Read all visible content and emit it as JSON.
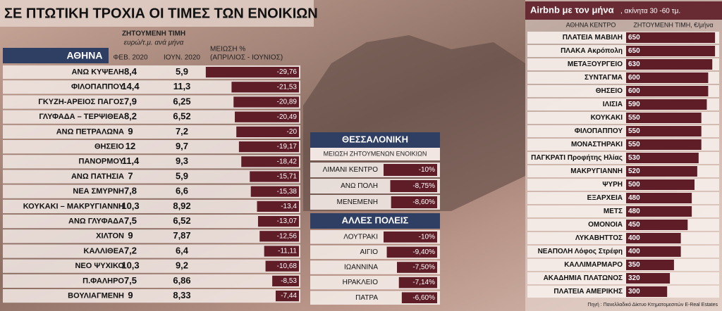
{
  "header": {
    "title": "ΣΕ ΠΤΩΤΙΚΗ ΤΡΟΧΙΑ ΟΙ ΤΙΜΕΣ ΤΩΝ ΕΝΟΙΚΙΩΝ"
  },
  "athens": {
    "price_heading": "ΖΗΤΟΥΜΕΝΗ ΤΙΜΗ",
    "price_unit": "ευρώ/τ.μ. ανά μήνα",
    "name_heading": "ΑΘΗΝΑ",
    "feb_heading": "ΦΕΒ. 2020",
    "jun_heading": "ΙΟΥΝ. 2020",
    "change_heading": "ΜΕΙΩΣΗ %",
    "change_period": "(ΑΠΡΙΛΙΟΣ - ΙΟΥΝΙΟΣ)",
    "rows": [
      {
        "name": "ΑΝΩ ΚΥΨΕΛΗ",
        "feb": "8,4",
        "jun": "5,9",
        "change": {
          "value": -29.76,
          "label": "-29,76"
        }
      },
      {
        "name": "ΦΙΛΟΠΑΠΠΟΥ",
        "feb": "14,4",
        "jun": "11,3",
        "change": {
          "value": -21.53,
          "label": "-21,53"
        }
      },
      {
        "name": "ΓΚΥΖΗ-ΑΡΕΙΟΣ ΠΑΓΟΣ",
        "feb": "7,9",
        "jun": "6,25",
        "change": {
          "value": -20.89,
          "label": "-20,89"
        }
      },
      {
        "name": "ΓΛΥΦΑΔΑ – ΤΕΡΨΙΘΕΑ",
        "feb": "8,2",
        "jun": "6,52",
        "change": {
          "value": -20.49,
          "label": "-20,49"
        }
      },
      {
        "name": "ΑΝΩ ΠΕΤΡΑΛΩΝΑ",
        "feb": "9",
        "jun": "7,2",
        "change": {
          "value": -20,
          "label": "-20"
        }
      },
      {
        "name": "ΘΗΣΕΙΟ",
        "feb": "12",
        "jun": "9,7",
        "change": {
          "value": -19.17,
          "label": "-19,17"
        }
      },
      {
        "name": "ΠΑΝΟΡΜΟΥ",
        "feb": "11,4",
        "jun": "9,3",
        "change": {
          "value": -18.42,
          "label": "-18,42"
        }
      },
      {
        "name": "ΑΝΩ ΠΑΤΗΣΙΑ",
        "feb": "7",
        "jun": "5,9",
        "change": {
          "value": -15.71,
          "label": "-15,71"
        }
      },
      {
        "name": "ΝΕΑ ΣΜΥΡΝΗ",
        "feb": "7,8",
        "jun": "6,6",
        "change": {
          "value": -15.38,
          "label": "-15,38"
        }
      },
      {
        "name": "ΚΟΥΚΑΚΙ – ΜΑΚΡΥΓΙΑΝΝΗ",
        "feb": "10,3",
        "jun": "8,92",
        "change": {
          "value": -13.4,
          "label": "-13,4"
        }
      },
      {
        "name": "ΑΝΩ ΓΛΥΦΑΔΑ",
        "feb": "7,5",
        "jun": "6,52",
        "change": {
          "value": -13.07,
          "label": "-13,07"
        }
      },
      {
        "name": "ΧΙΛΤΟΝ",
        "feb": "9",
        "jun": "7,87",
        "change": {
          "value": -12.56,
          "label": "-12,56"
        }
      },
      {
        "name": "ΚΑΛΛΙΘΕΑ",
        "feb": "7,2",
        "jun": "6,4",
        "change": {
          "value": -11.11,
          "label": "-11,11"
        }
      },
      {
        "name": "ΝΕΟ ΨΥΧΙΚΟ",
        "feb": "10,3",
        "jun": "9,2",
        "change": {
          "value": -10.68,
          "label": "-10,68"
        }
      },
      {
        "name": "Π.ΦΑΛΗΡΟ",
        "feb": "7,5",
        "jun": "6,86",
        "change": {
          "value": -8.53,
          "label": "-8,53"
        }
      },
      {
        "name": "ΒΟΥΛΙΑΓΜΕΝΗ",
        "feb": "9",
        "jun": "8,33",
        "change": {
          "value": -7.44,
          "label": "-7,44"
        }
      }
    ]
  },
  "thessaloniki": {
    "title": "ΘΕΣΣΑΛΟΝΙΚΗ",
    "subtitle": "ΜΕΙΩΣΗ ΖΗΤΟΥΜΕΝΩΝ ΕΝΟΙΚΙΩΝ",
    "rows": [
      {
        "name": "ΛΙΜΑΝΙ ΚΕΝΤΡΟ",
        "change": {
          "value": -10,
          "label": "-10%"
        }
      },
      {
        "name": "ΑΝΩ ΠΟΛΗ",
        "change": {
          "value": -8.75,
          "label": "-8,75%"
        }
      },
      {
        "name": "ΜΕΝΕΜΕΝΗ",
        "change": {
          "value": -8.6,
          "label": "-8,60%"
        }
      }
    ]
  },
  "other_cities": {
    "title": "ΑΛΛΕΣ ΠΟΛΕΙΣ",
    "rows": [
      {
        "name": "ΛΟΥΤΡΑΚΙ",
        "change": {
          "value": -10,
          "label": "-10%"
        }
      },
      {
        "name": "ΑΙΓΙΟ",
        "change": {
          "value": -9.4,
          "label": "-9,40%"
        }
      },
      {
        "name": "ΙΩΑΝΝΙΝΑ",
        "change": {
          "value": -7.5,
          "label": "-7,50%"
        }
      },
      {
        "name": "ΗΡΑΚΛΕΙΟ",
        "change": {
          "value": -7.14,
          "label": "-7,14%"
        }
      },
      {
        "name": "ΠΑΤΡΑ",
        "change": {
          "value": -6.6,
          "label": "-6,60%"
        }
      }
    ]
  },
  "airbnb": {
    "title": "Airbnb με τον μήνα",
    "subtitle": ", ακίνητα 30 -60 τμ.",
    "name_heading": "ΑΘΗΝΑ ΚΕΝΤΡΟ",
    "price_heading": "ΖΗΤΟΥΜΕΝΗ ΤΙΜΗ, €/μήνα",
    "rows": [
      {
        "name": "ΠΛΑΤΕΙΑ ΜΑΒΙΛΗ",
        "price": 650
      },
      {
        "name": "ΠΛΑΚΑ Ακρόπολη",
        "price": 650
      },
      {
        "name": "ΜΕΤΑΞΟΥΡΓΕΙΟ",
        "price": 630
      },
      {
        "name": "ΣΥΝΤΑΓΜΑ",
        "price": 600
      },
      {
        "name": "ΘΗΣΕΙΟ",
        "price": 600
      },
      {
        "name": "ΙΛΙΣΙΑ",
        "price": 590
      },
      {
        "name": "ΚΟΥΚΑΚΙ",
        "price": 550
      },
      {
        "name": "ΦΙΛΟΠΑΠΠΟΥ",
        "price": 550
      },
      {
        "name": "ΜΟΝΑΣΤΗΡΑΚΙ",
        "price": 550
      },
      {
        "name": "ΠΑΓΚΡΑΤΙ Προφήτης Ηλίας",
        "price": 530
      },
      {
        "name": "ΜΑΚΡΥΓΙΑΝΝΗ",
        "price": 520
      },
      {
        "name": "ΨΥΡΗ",
        "price": 500
      },
      {
        "name": "ΕΞΑΡΧΕΙΑ",
        "price": 480
      },
      {
        "name": "ΜΕΤΣ",
        "price": 480
      },
      {
        "name": "ΟΜΟΝΟΙΑ",
        "price": 450
      },
      {
        "name": "ΛΥΚΑΒΗΤΤΟΣ",
        "price": 400
      },
      {
        "name": "ΝΕΑΠΟΛΗ Λόφος Στρέφη",
        "price": 400
      },
      {
        "name": "ΚΑΛΛΙΜΑΡΜΑΡΟ",
        "price": 350
      },
      {
        "name": "ΑΚΑΔΗΜΙΑ ΠΛΑΤΩΝΟΣ",
        "price": 320
      },
      {
        "name": "ΠΛΑΤΕΙΑ ΑΜΕΡΙΚΗΣ",
        "price": 300
      }
    ],
    "source": "Πηγή : Πανελλαδικό Δίκτυο Κτηματομεσιτών E-Real Estates"
  }
}
